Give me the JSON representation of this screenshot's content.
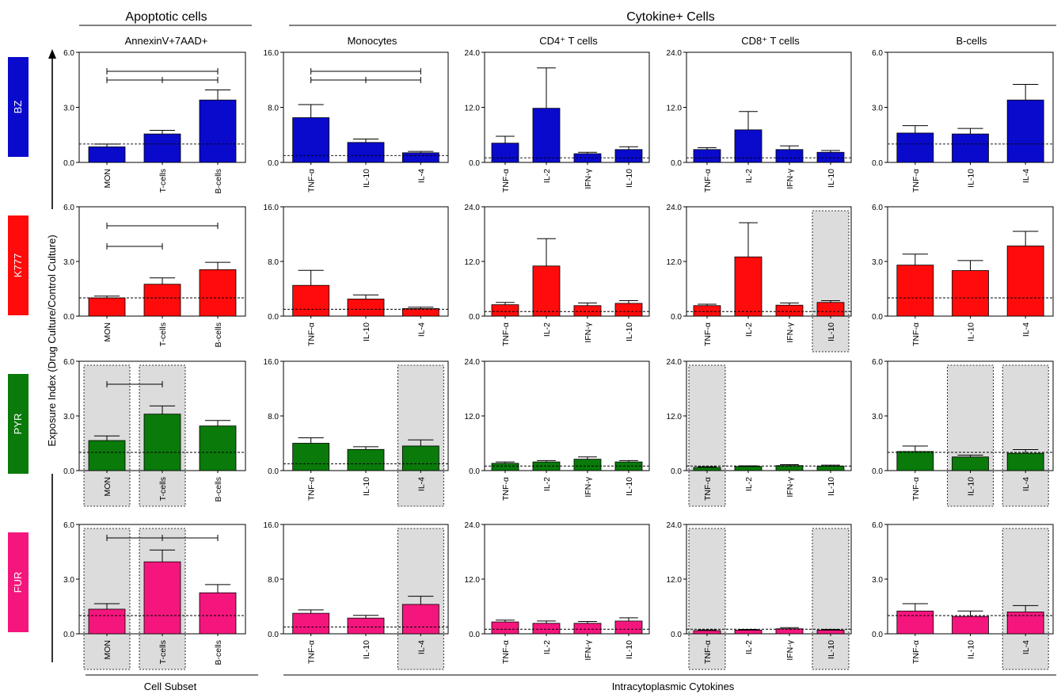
{
  "header": {
    "apoptotic": "Apoptotic cells",
    "cytokine": "Cytokine+ Cells"
  },
  "footer": {
    "cell_subset": "Cell Subset",
    "cytokines": "Intracytoplasmic Cytokines"
  },
  "y_label": "Exposure Index (Drug Culture/Control Culture)",
  "columns": [
    "AnnexinV+7AAD+",
    "Monocytes",
    "CD4⁺ T cells",
    "CD8⁺ T cells",
    "B-cells"
  ],
  "drugs": [
    {
      "label": "BZ",
      "color": "#0a0acc"
    },
    {
      "label": "K777",
      "color": "#ff0b0b"
    },
    {
      "label": "PYR",
      "color": "#0a7a0a"
    },
    {
      "label": "FUR",
      "color": "#f5167d"
    }
  ],
  "chart_data": [
    {
      "type": "bar",
      "drug": "BZ",
      "panel": "AnnexinV+7AAD+",
      "categories": [
        "MON",
        "T-cells",
        "B-cells"
      ],
      "values": [
        0.85,
        1.55,
        3.4
      ],
      "errors": [
        0.15,
        0.2,
        0.55
      ],
      "ylim": [
        0,
        6
      ],
      "yticks": [
        "0.0",
        "3.0",
        "6.0"
      ],
      "reference": 1,
      "highlight": [],
      "significance": [
        [
          0,
          2
        ],
        [
          0,
          1
        ],
        [
          1,
          2
        ]
      ]
    },
    {
      "type": "bar",
      "drug": "BZ",
      "panel": "Monocytes",
      "categories": [
        "TNF-α",
        "IL-10",
        "IL-4"
      ],
      "values": [
        6.5,
        2.9,
        1.4
      ],
      "errors": [
        1.9,
        0.5,
        0.2
      ],
      "ylim": [
        0,
        16
      ],
      "yticks": [
        "0.0",
        "8.0",
        "16.0"
      ],
      "reference": 1,
      "highlight": [],
      "significance": [
        [
          0,
          2
        ],
        [
          0,
          1
        ],
        [
          1,
          2
        ]
      ]
    },
    {
      "type": "bar",
      "drug": "BZ",
      "panel": "CD4⁺ T cells",
      "categories": [
        "TNF-α",
        "IL-2",
        "IFN-γ",
        "IL-10"
      ],
      "values": [
        4.2,
        11.8,
        1.9,
        2.8
      ],
      "errors": [
        1.5,
        8.8,
        0.3,
        0.6
      ],
      "ylim": [
        0,
        24
      ],
      "yticks": [
        "0.0",
        "12.0",
        "24.0"
      ],
      "reference": 1,
      "highlight": [],
      "significance": []
    },
    {
      "type": "bar",
      "drug": "BZ",
      "panel": "CD8⁺ T cells",
      "categories": [
        "TNF-α",
        "IL-2",
        "IFN-γ",
        "IL-10"
      ],
      "values": [
        2.8,
        7.1,
        2.8,
        2.2
      ],
      "errors": [
        0.4,
        4.0,
        0.8,
        0.4
      ],
      "ylim": [
        0,
        24
      ],
      "yticks": [
        "0.0",
        "12.0",
        "24.0"
      ],
      "reference": 1,
      "highlight": [],
      "significance": []
    },
    {
      "type": "bar",
      "drug": "BZ",
      "panel": "B-cells",
      "categories": [
        "TNF-α",
        "IL-10",
        "IL-4"
      ],
      "values": [
        1.6,
        1.55,
        3.4
      ],
      "errors": [
        0.4,
        0.3,
        0.85
      ],
      "ylim": [
        0,
        6
      ],
      "yticks": [
        "0.0",
        "3.0",
        "6.0"
      ],
      "reference": 1,
      "highlight": [],
      "significance": []
    },
    {
      "type": "bar",
      "drug": "K777",
      "panel": "AnnexinV+7AAD+",
      "categories": [
        "MON",
        "T-cells",
        "B-cells"
      ],
      "values": [
        1.0,
        1.75,
        2.55
      ],
      "errors": [
        0.1,
        0.35,
        0.4
      ],
      "ylim": [
        0,
        6
      ],
      "yticks": [
        "0.0",
        "3.0",
        "6.0"
      ],
      "reference": 1,
      "highlight": [],
      "significance": [
        [
          0,
          2
        ],
        [
          0,
          1
        ]
      ]
    },
    {
      "type": "bar",
      "drug": "K777",
      "panel": "Monocytes",
      "categories": [
        "TNF-α",
        "IL-10",
        "IL-4"
      ],
      "values": [
        4.5,
        2.5,
        1.1
      ],
      "errors": [
        2.2,
        0.6,
        0.2
      ],
      "ylim": [
        0,
        16
      ],
      "yticks": [
        "0.0",
        "8.0",
        "16.0"
      ],
      "reference": 1,
      "highlight": [],
      "significance": []
    },
    {
      "type": "bar",
      "drug": "K777",
      "panel": "CD4⁺ T cells",
      "categories": [
        "TNF-α",
        "IL-2",
        "IFN-γ",
        "IL-10"
      ],
      "values": [
        2.5,
        11.0,
        2.3,
        2.8
      ],
      "errors": [
        0.5,
        6.0,
        0.6,
        0.6
      ],
      "ylim": [
        0,
        24
      ],
      "yticks": [
        "0.0",
        "12.0",
        "24.0"
      ],
      "reference": 1,
      "highlight": [],
      "significance": []
    },
    {
      "type": "bar",
      "drug": "K777",
      "panel": "CD8⁺ T cells",
      "categories": [
        "TNF-α",
        "IL-2",
        "IFN-γ",
        "IL-10"
      ],
      "values": [
        2.3,
        13.0,
        2.4,
        3.0
      ],
      "errors": [
        0.3,
        7.5,
        0.5,
        0.4
      ],
      "ylim": [
        0,
        24
      ],
      "yticks": [
        "0.0",
        "12.0",
        "24.0"
      ],
      "reference": 1,
      "highlight": [
        3
      ],
      "significance": []
    },
    {
      "type": "bar",
      "drug": "K777",
      "panel": "B-cells",
      "categories": [
        "TNF-α",
        "IL-10",
        "IL-4"
      ],
      "values": [
        2.8,
        2.5,
        3.85
      ],
      "errors": [
        0.6,
        0.55,
        0.8
      ],
      "ylim": [
        0,
        6
      ],
      "yticks": [
        "0.0",
        "3.0",
        "6.0"
      ],
      "reference": 1,
      "highlight": [],
      "significance": []
    },
    {
      "type": "bar",
      "drug": "PYR",
      "panel": "AnnexinV+7AAD+",
      "categories": [
        "MON",
        "T-cells",
        "B-cells"
      ],
      "values": [
        1.65,
        3.1,
        2.45
      ],
      "errors": [
        0.25,
        0.45,
        0.3
      ],
      "ylim": [
        0,
        6
      ],
      "yticks": [
        "0.0",
        "3.0",
        "6.0"
      ],
      "reference": 1,
      "highlight": [
        0,
        1
      ],
      "significance": [
        [
          0,
          1
        ]
      ]
    },
    {
      "type": "bar",
      "drug": "PYR",
      "panel": "Monocytes",
      "categories": [
        "TNF-α",
        "IL-10",
        "IL-4"
      ],
      "values": [
        4.0,
        3.1,
        3.6
      ],
      "errors": [
        0.8,
        0.4,
        0.9
      ],
      "ylim": [
        0,
        16
      ],
      "yticks": [
        "0.0",
        "8.0",
        "16.0"
      ],
      "reference": 1,
      "highlight": [
        2
      ],
      "significance": []
    },
    {
      "type": "bar",
      "drug": "PYR",
      "panel": "CD4⁺ T cells",
      "categories": [
        "TNF-α",
        "IL-2",
        "IFN-γ",
        "IL-10"
      ],
      "values": [
        1.6,
        1.9,
        2.5,
        1.9
      ],
      "errors": [
        0.3,
        0.3,
        0.5,
        0.3
      ],
      "ylim": [
        0,
        24
      ],
      "yticks": [
        "0.0",
        "12.0",
        "24.0"
      ],
      "reference": 1,
      "highlight": [],
      "significance": []
    },
    {
      "type": "bar",
      "drug": "PYR",
      "panel": "CD8⁺ T cells",
      "categories": [
        "TNF-α",
        "IL-2",
        "IFN-γ",
        "IL-10"
      ],
      "values": [
        0.7,
        0.9,
        1.1,
        1.0
      ],
      "errors": [
        0.15,
        0.15,
        0.2,
        0.2
      ],
      "ylim": [
        0,
        24
      ],
      "yticks": [
        "0.0",
        "12.0",
        "24.0"
      ],
      "reference": 1,
      "highlight": [
        0
      ],
      "significance": []
    },
    {
      "type": "bar",
      "drug": "PYR",
      "panel": "B-cells",
      "categories": [
        "TNF-α",
        "IL-10",
        "IL-4"
      ],
      "values": [
        1.05,
        0.75,
        0.95
      ],
      "errors": [
        0.3,
        0.1,
        0.2
      ],
      "ylim": [
        0,
        6
      ],
      "yticks": [
        "0.0",
        "3.0",
        "6.0"
      ],
      "reference": 1,
      "highlight": [
        1,
        2
      ],
      "significance": []
    },
    {
      "type": "bar",
      "drug": "FUR",
      "panel": "AnnexinV+7AAD+",
      "categories": [
        "MON",
        "T-cells",
        "B-cells"
      ],
      "values": [
        1.35,
        3.95,
        2.25
      ],
      "errors": [
        0.3,
        0.65,
        0.45
      ],
      "ylim": [
        0,
        6
      ],
      "yticks": [
        "0.0",
        "3.0",
        "6.0"
      ],
      "reference": 1,
      "highlight": [
        0,
        1
      ],
      "significance": [
        [
          0,
          1
        ],
        [
          1,
          2
        ]
      ]
    },
    {
      "type": "bar",
      "drug": "FUR",
      "panel": "Monocytes",
      "categories": [
        "TNF-α",
        "IL-10",
        "IL-4"
      ],
      "values": [
        3.0,
        2.3,
        4.3
      ],
      "errors": [
        0.5,
        0.4,
        1.2
      ],
      "ylim": [
        0,
        16
      ],
      "yticks": [
        "0.0",
        "8.0",
        "16.0"
      ],
      "reference": 1,
      "highlight": [
        2
      ],
      "significance": []
    },
    {
      "type": "bar",
      "drug": "FUR",
      "panel": "CD4⁺ T cells",
      "categories": [
        "TNF-α",
        "IL-2",
        "IFN-γ",
        "IL-10"
      ],
      "values": [
        2.6,
        2.3,
        2.3,
        2.8
      ],
      "errors": [
        0.4,
        0.5,
        0.4,
        0.7
      ],
      "ylim": [
        0,
        24
      ],
      "yticks": [
        "0.0",
        "12.0",
        "24.0"
      ],
      "reference": 1,
      "highlight": [],
      "significance": []
    },
    {
      "type": "bar",
      "drug": "FUR",
      "panel": "CD8⁺ T cells",
      "categories": [
        "TNF-α",
        "IL-2",
        "IFN-γ",
        "IL-10"
      ],
      "values": [
        0.7,
        0.8,
        1.1,
        0.8
      ],
      "errors": [
        0.15,
        0.15,
        0.25,
        0.15
      ],
      "ylim": [
        0,
        24
      ],
      "yticks": [
        "0.0",
        "12.0",
        "24.0"
      ],
      "reference": 1,
      "highlight": [
        0,
        3
      ],
      "significance": []
    },
    {
      "type": "bar",
      "drug": "FUR",
      "panel": "B-cells",
      "categories": [
        "TNF-α",
        "IL-10",
        "IL-4"
      ],
      "values": [
        1.25,
        0.95,
        1.2
      ],
      "errors": [
        0.4,
        0.3,
        0.35
      ],
      "ylim": [
        0,
        6
      ],
      "yticks": [
        "0.0",
        "3.0",
        "6.0"
      ],
      "reference": 1,
      "highlight": [
        2
      ],
      "significance": []
    }
  ]
}
